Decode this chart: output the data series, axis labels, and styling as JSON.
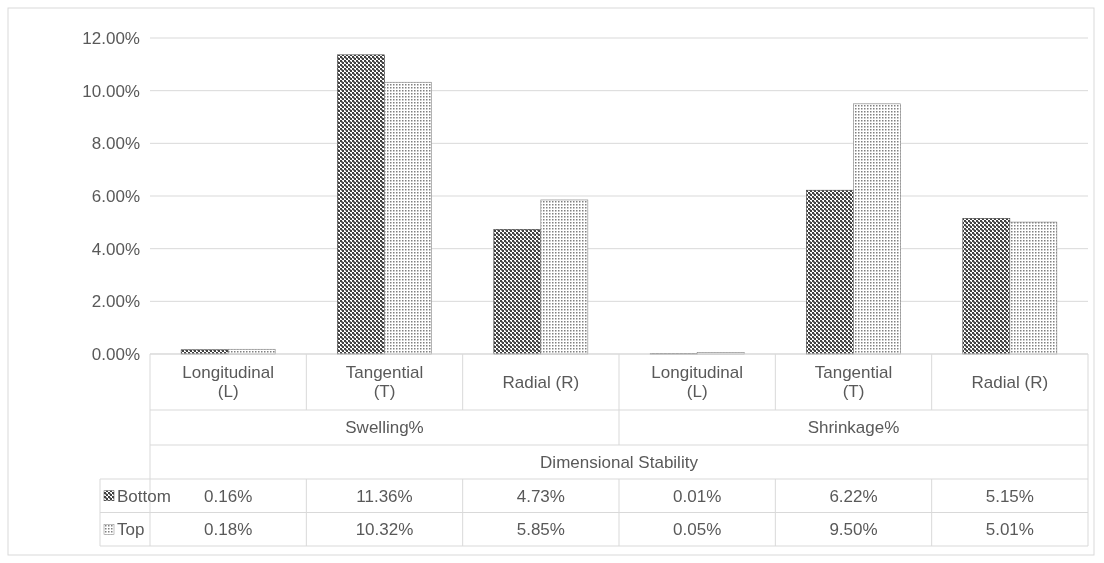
{
  "chart_data": {
    "type": "bar",
    "categories": [
      "Longitudinal (L)",
      "Tangential (T)",
      "Radial (R)",
      "Longitudinal (L)",
      "Tangential (T)",
      "Radial (R)"
    ],
    "xlabel": "Dimensional Stability",
    "annotations": [
      "Swelling%",
      "Shrinkage%"
    ],
    "series": [
      {
        "name": "Bottom",
        "color": "#404040",
        "values": [
          0.16,
          11.36,
          4.73,
          0.01,
          6.22,
          5.15
        ],
        "value_labels": [
          "0.16%",
          "11.36%",
          "4.73%",
          "0.01%",
          "6.22%",
          "5.15%"
        ]
      },
      {
        "name": "Top",
        "color": "#808080",
        "values": [
          0.18,
          10.32,
          5.85,
          0.05,
          9.5,
          5.01
        ],
        "value_labels": [
          "0.18%",
          "10.32%",
          "5.85%",
          "0.05%",
          "9.50%",
          "5.01%"
        ]
      }
    ],
    "ylim": [
      0,
      12
    ],
    "yticks": [
      {
        "value": 0,
        "label": "0.00%"
      },
      {
        "value": 2,
        "label": "2.00%"
      },
      {
        "value": 4,
        "label": "4.00%"
      },
      {
        "value": 6,
        "label": "6.00%"
      },
      {
        "value": 8,
        "label": "8.00%"
      },
      {
        "value": 10,
        "label": "10.00%"
      },
      {
        "value": 12,
        "label": "12.00%"
      }
    ],
    "grid": "y",
    "legend": "bottom"
  }
}
